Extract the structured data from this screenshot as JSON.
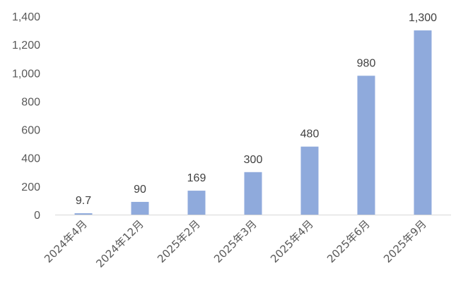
{
  "chart_data": {
    "type": "bar",
    "title": "",
    "xlabel": "",
    "ylabel": "",
    "categories": [
      "2024年4月",
      "2024年12月",
      "2025年2月",
      "2025年3月",
      "2025年4月",
      "2025年6月",
      "2025年9月"
    ],
    "values": [
      9.7,
      90,
      169,
      300,
      480,
      980,
      1300
    ],
    "value_labels": [
      "9.7",
      "90",
      "169",
      "300",
      "480",
      "980",
      "1,300"
    ],
    "ylim": [
      0,
      1400
    ],
    "yticks": [
      0,
      200,
      400,
      600,
      800,
      1000,
      1200,
      1400
    ],
    "ytick_labels": [
      "0",
      "200",
      "400",
      "600",
      "800",
      "1,000",
      "1,200",
      "1,400"
    ],
    "grid": false,
    "legend": "none",
    "colors": {
      "bar": "#8faadc",
      "axis": "#d9d9d9",
      "tick_text": "#595959",
      "label_text": "#404040"
    }
  }
}
